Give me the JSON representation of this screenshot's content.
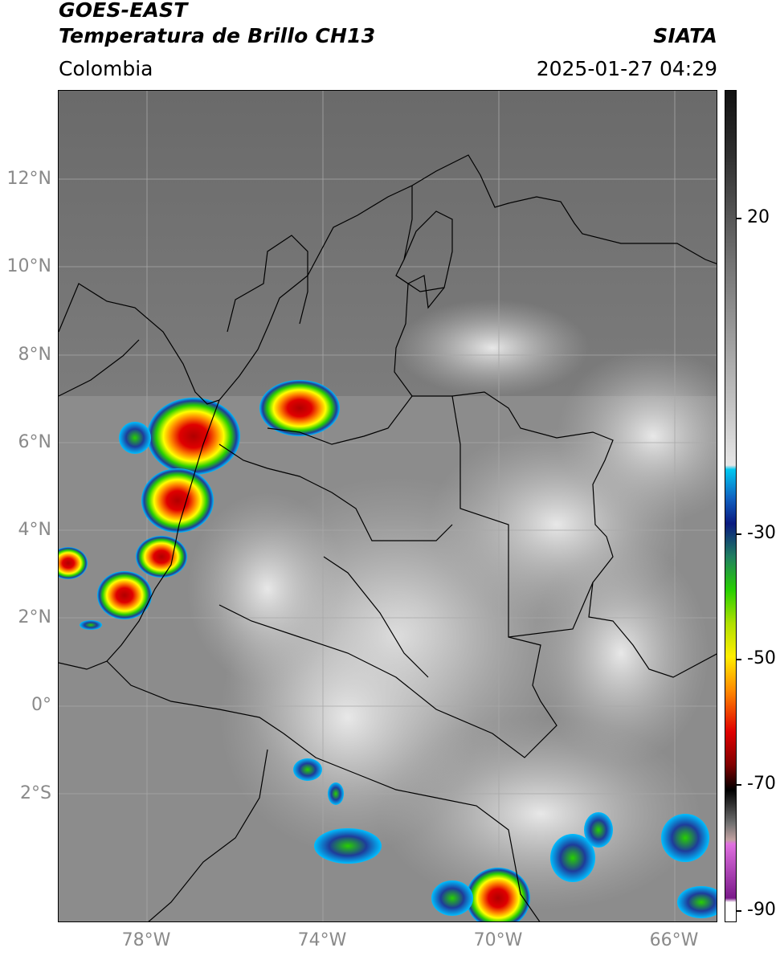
{
  "header": {
    "title_line1": "GOES-EAST",
    "title_line2": "Temperatura de Brillo CH13",
    "region": "Colombia",
    "source": "SIATA",
    "datetime": "2025-01-27 04:29"
  },
  "map": {
    "lat_ticks": [
      "12°N",
      "10°N",
      "8°N",
      "6°N",
      "4°N",
      "2°N",
      "0°",
      "2°S"
    ],
    "lon_ticks": [
      "78°W",
      "74°W",
      "70°W",
      "66°W"
    ],
    "extent": {
      "lon_min": -80.0,
      "lon_max": -65.0,
      "lat_min": -4.9,
      "lat_max": 14.0
    }
  },
  "colorbar": {
    "labels": [
      "20",
      "-30",
      "-50",
      "-70",
      "-90"
    ],
    "range": [
      -92,
      35
    ],
    "colors": {
      "warm": "#1a1a1a",
      "cold_cloud": "#f0f0f0",
      "cyan": "#00bfff",
      "blue": "#1e3c9a",
      "green": "#28d000",
      "yellow": "#ffff00",
      "orange": "#ff8c00",
      "red": "#e00000",
      "darkred": "#600000",
      "black": "#000000",
      "magenta": "#e070e0",
      "purple": "#7a1a8a"
    }
  }
}
